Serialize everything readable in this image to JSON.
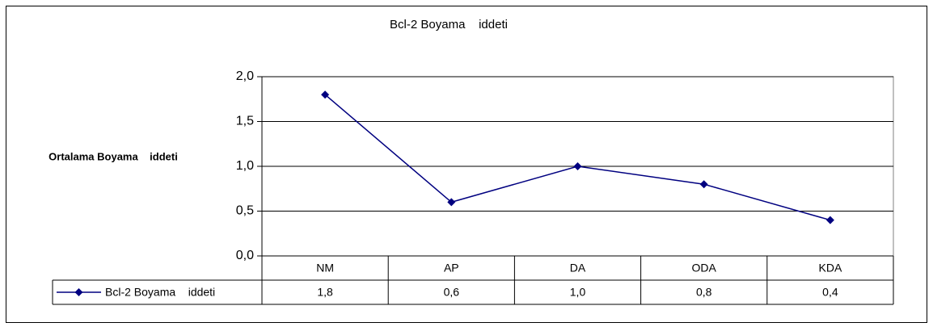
{
  "chart_data": {
    "type": "line",
    "title": "Bcl-2 Boyama    iddeti",
    "y_label": "Ortalama Boyama    iddeti",
    "categories": [
      "NM",
      "AP",
      "DA",
      "ODA",
      "KDA"
    ],
    "series": [
      {
        "name": "Bcl-2 Boyama    iddeti",
        "color": "#000080",
        "values": [
          1.8,
          0.6,
          1.0,
          0.8,
          0.4
        ],
        "value_labels": [
          "1,8",
          "0,6",
          "1,0",
          "0,8",
          "0,4"
        ]
      }
    ],
    "ylim": [
      0,
      2
    ],
    "yticks": [
      {
        "value": 0,
        "label": "0,0"
      },
      {
        "value": 0.5,
        "label": "0,5"
      },
      {
        "value": 1,
        "label": "1,0"
      },
      {
        "value": 1.5,
        "label": "1,5"
      },
      {
        "value": 2,
        "label": "2,0"
      }
    ],
    "grid": true,
    "data_table": true
  }
}
